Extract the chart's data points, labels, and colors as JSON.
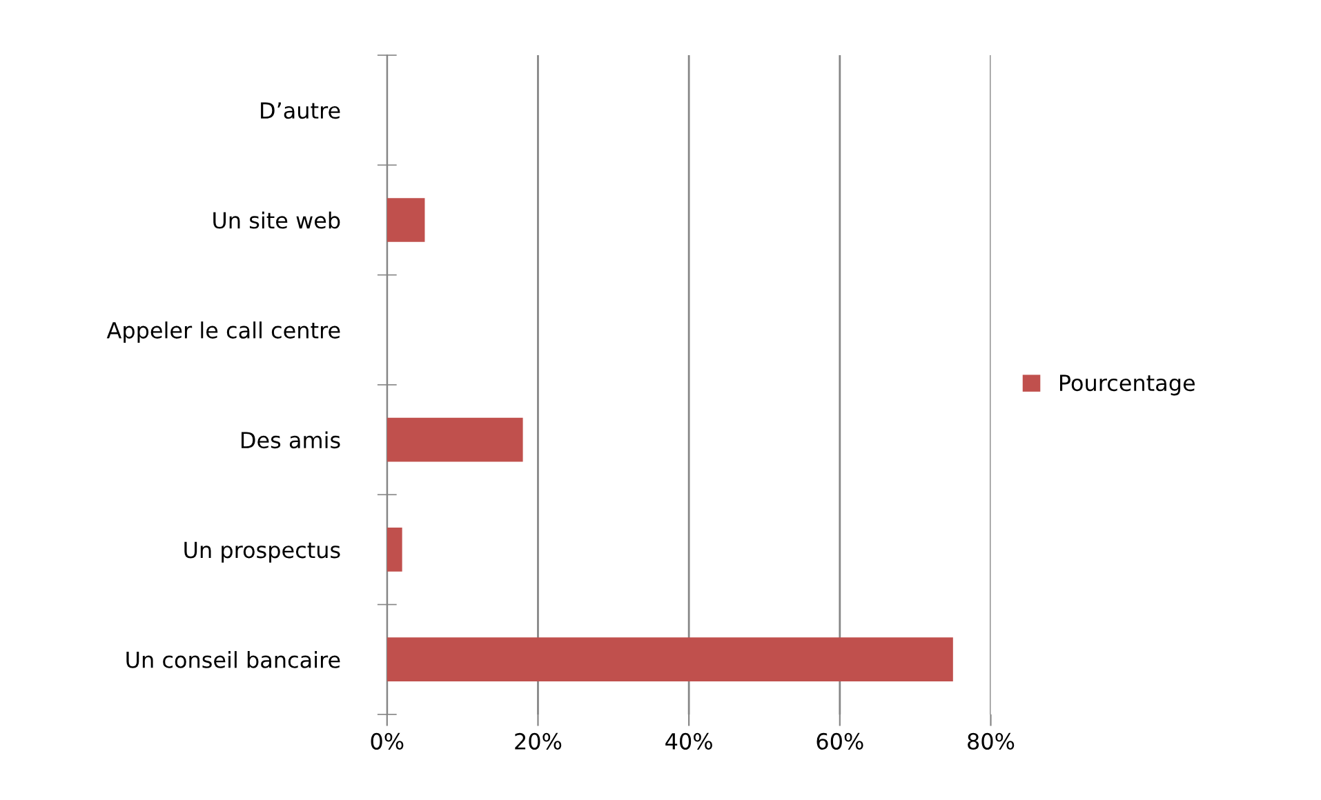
{
  "chart_data": {
    "type": "bar",
    "orientation": "horizontal",
    "categories": [
      "D’autre",
      "Un site web",
      "Appeler le call centre",
      "Des amis",
      "Un prospectus",
      "Un conseil bancaire"
    ],
    "series": [
      {
        "name": "Pourcentage",
        "color": "#c0504d",
        "values": [
          0,
          5,
          0,
          18,
          2,
          75
        ]
      }
    ],
    "xlim": [
      0,
      80
    ],
    "xticks": [
      {
        "value": 0,
        "label": "0%"
      },
      {
        "value": 20,
        "label": "20%"
      },
      {
        "value": 40,
        "label": "40%"
      },
      {
        "value": 60,
        "label": "60%"
      },
      {
        "value": 80,
        "label": "80%"
      }
    ],
    "grid": "x",
    "legend": "right"
  }
}
